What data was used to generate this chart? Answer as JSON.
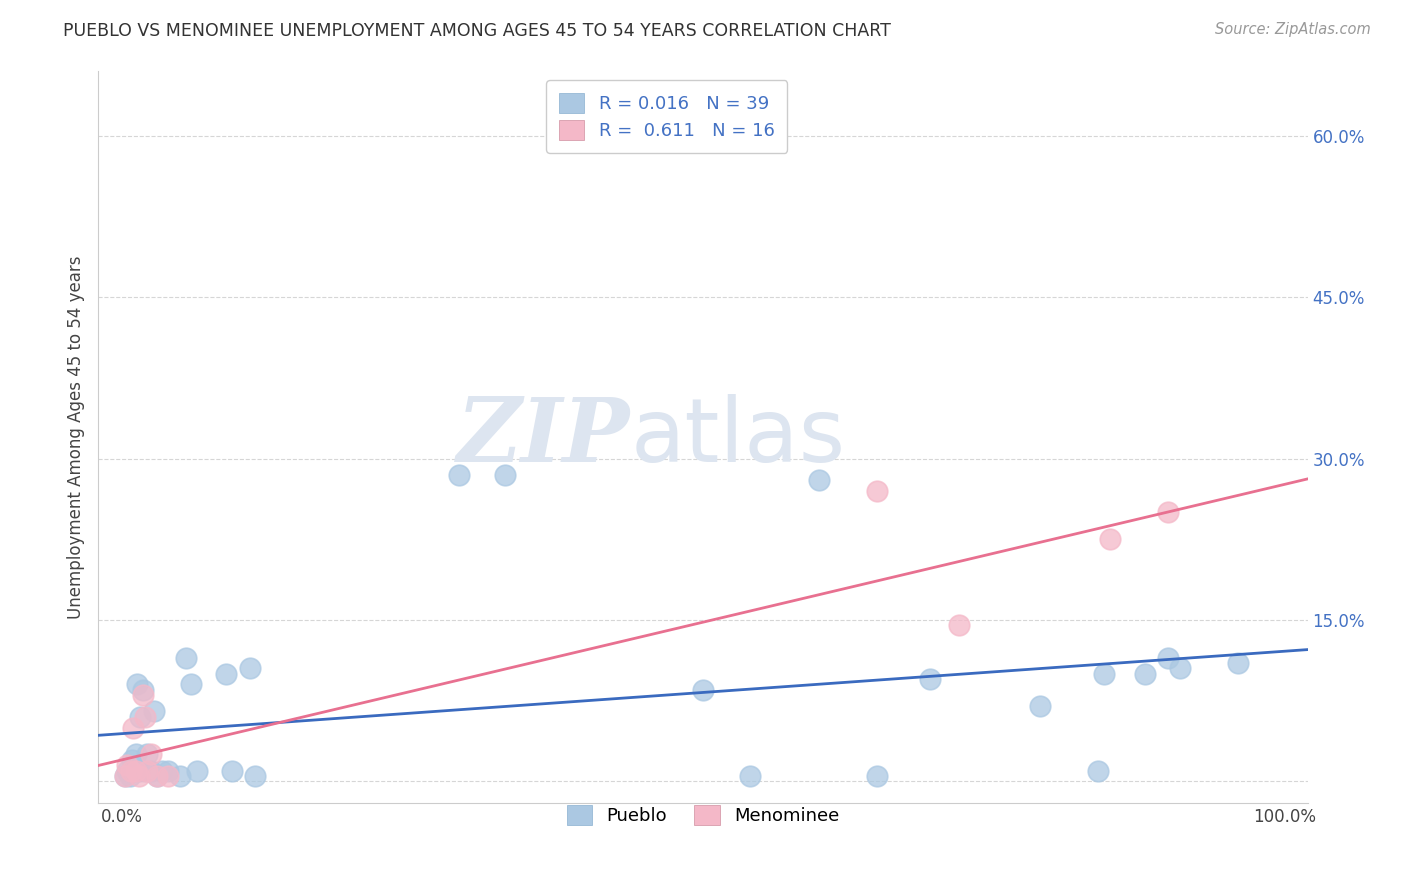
{
  "title": "PUEBLO VS MENOMINEE UNEMPLOYMENT AMONG AGES 45 TO 54 YEARS CORRELATION CHART",
  "source": "Source: ZipAtlas.com",
  "ylabel": "Unemployment Among Ages 45 to 54 years",
  "xlim": [
    -0.02,
    1.02
  ],
  "ylim": [
    -0.02,
    0.66
  ],
  "yticks": [
    0.0,
    0.15,
    0.3,
    0.45,
    0.6
  ],
  "ytick_labels": [
    "",
    "15.0%",
    "30.0%",
    "45.0%",
    "60.0%"
  ],
  "xticks": [
    0.0,
    0.25,
    0.5,
    0.75,
    1.0
  ],
  "xtick_labels": [
    "0.0%",
    "",
    "",
    "",
    "100.0%"
  ],
  "pueblo_R": "0.016",
  "pueblo_N": "39",
  "menominee_R": "0.611",
  "menominee_N": "16",
  "pueblo_color": "#abc8e2",
  "menominee_color": "#f4b8c8",
  "pueblo_line_color": "#3a6abf",
  "menominee_line_color": "#e87090",
  "legend_text_color": "#4472c4",
  "watermark_zip": "ZIP",
  "watermark_atlas": "atlas",
  "pueblo_x": [
    0.003,
    0.005,
    0.007,
    0.009,
    0.01,
    0.012,
    0.013,
    0.015,
    0.016,
    0.018,
    0.02,
    0.022,
    0.025,
    0.028,
    0.03,
    0.035,
    0.04,
    0.05,
    0.055,
    0.06,
    0.065,
    0.09,
    0.095,
    0.11,
    0.115,
    0.29,
    0.33,
    0.5,
    0.54,
    0.6,
    0.65,
    0.695,
    0.79,
    0.84,
    0.845,
    0.88,
    0.9,
    0.91,
    0.96
  ],
  "pueblo_y": [
    0.005,
    0.01,
    0.005,
    0.02,
    0.01,
    0.025,
    0.09,
    0.01,
    0.06,
    0.085,
    0.01,
    0.025,
    0.01,
    0.065,
    0.005,
    0.01,
    0.01,
    0.005,
    0.115,
    0.09,
    0.01,
    0.1,
    0.01,
    0.105,
    0.005,
    0.285,
    0.285,
    0.085,
    0.005,
    0.28,
    0.005,
    0.095,
    0.07,
    0.01,
    0.1,
    0.1,
    0.115,
    0.105,
    0.11
  ],
  "menominee_x": [
    0.003,
    0.005,
    0.008,
    0.01,
    0.012,
    0.015,
    0.018,
    0.02,
    0.022,
    0.025,
    0.03,
    0.04,
    0.65,
    0.72,
    0.85,
    0.9
  ],
  "menominee_y": [
    0.005,
    0.015,
    0.01,
    0.05,
    0.01,
    0.005,
    0.08,
    0.06,
    0.01,
    0.025,
    0.005,
    0.005,
    0.27,
    0.145,
    0.225,
    0.25
  ],
  "grid_color": "#cccccc",
  "background_color": "#ffffff"
}
